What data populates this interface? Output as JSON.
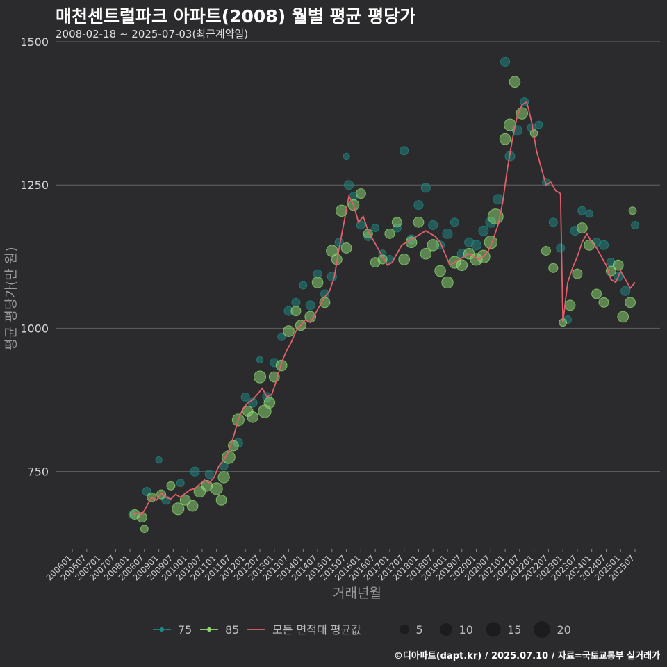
{
  "title": "매천센트럴파크 아파트(2008) 월별 평균 평당가",
  "subtitle": "2008-02-18 ~ 2025-07-03(최근계약일)",
  "footer": "©디아파트(dapt.kr) / 2025.07.10 / 자료=국토교통부 실거래가",
  "colors": {
    "background": "#2b2b2d",
    "grid": "#5a5a5a",
    "s75": "#1f8a84",
    "s85": "#8fdc74",
    "avg": "#e0606b"
  },
  "chart_data": {
    "type": "scatter",
    "title": "매천센트럴파크 아파트(2008) 월별 평균 평당가",
    "xlabel": "거래년월",
    "ylabel": "평균 평당가(만 원)",
    "ylim": [
      615,
      1500
    ],
    "y_ticks": [
      750,
      1000,
      1250,
      1500
    ],
    "x_range": [
      "2006-01",
      "2025-07"
    ],
    "x_tick_labels": [
      "200601",
      "200607",
      "200701",
      "200707",
      "200801",
      "200807",
      "200901",
      "200907",
      "201001",
      "201007",
      "201101",
      "201107",
      "201201",
      "201207",
      "201301",
      "201307",
      "201401",
      "201407",
      "201501",
      "201507",
      "201601",
      "201607",
      "201701",
      "201707",
      "201801",
      "201807",
      "201901",
      "201907",
      "202001",
      "202007",
      "202101",
      "202107",
      "202201",
      "202207",
      "202301",
      "202307",
      "202401",
      "202407",
      "202501",
      "202507"
    ],
    "legend": {
      "series": [
        {
          "key": "75",
          "label": "75"
        },
        {
          "key": "85",
          "label": "85"
        },
        {
          "key": "avg",
          "label": "모든 면적대 평균값"
        }
      ],
      "sizes": [
        5,
        10,
        15,
        20
      ],
      "size_labels": [
        "5",
        "10",
        "15",
        "20"
      ]
    },
    "series": [
      {
        "name": "75",
        "points": [
          [
            "2008-02",
            675,
            3
          ],
          [
            "2008-08",
            715,
            4
          ],
          [
            "2009-01",
            770,
            2
          ],
          [
            "2009-04",
            700,
            4
          ],
          [
            "2009-10",
            730,
            3
          ],
          [
            "2010-04",
            750,
            5
          ],
          [
            "2010-10",
            745,
            4
          ],
          [
            "2011-04",
            760,
            4
          ],
          [
            "2011-10",
            800,
            5
          ],
          [
            "2012-01",
            880,
            4
          ],
          [
            "2012-04",
            870,
            5
          ],
          [
            "2012-07",
            945,
            2
          ],
          [
            "2012-10",
            880,
            5
          ],
          [
            "2013-01",
            940,
            4
          ],
          [
            "2013-04",
            985,
            3
          ],
          [
            "2013-07",
            1030,
            5
          ],
          [
            "2013-10",
            1045,
            4
          ],
          [
            "2014-01",
            1075,
            3
          ],
          [
            "2014-04",
            1040,
            5
          ],
          [
            "2014-07",
            1095,
            4
          ],
          [
            "2014-10",
            1060,
            4
          ],
          [
            "2015-01",
            1090,
            5
          ],
          [
            "2015-04",
            1150,
            4
          ],
          [
            "2015-07",
            1300,
            2
          ],
          [
            "2015-08",
            1250,
            5
          ],
          [
            "2015-10",
            1230,
            4
          ],
          [
            "2016-01",
            1180,
            4
          ],
          [
            "2016-04",
            1160,
            4
          ],
          [
            "2016-07",
            1175,
            3
          ],
          [
            "2016-10",
            1130,
            3
          ],
          [
            "2017-01",
            1120,
            4
          ],
          [
            "2017-04",
            1175,
            4
          ],
          [
            "2017-07",
            1310,
            4
          ],
          [
            "2017-10",
            1155,
            5
          ],
          [
            "2018-01",
            1215,
            5
          ],
          [
            "2018-04",
            1245,
            5
          ],
          [
            "2018-07",
            1180,
            5
          ],
          [
            "2018-10",
            1145,
            4
          ],
          [
            "2019-01",
            1165,
            6
          ],
          [
            "2019-04",
            1185,
            4
          ],
          [
            "2019-07",
            1130,
            5
          ],
          [
            "2019-10",
            1150,
            5
          ],
          [
            "2020-01",
            1145,
            6
          ],
          [
            "2020-04",
            1170,
            6
          ],
          [
            "2020-07",
            1185,
            7
          ],
          [
            "2020-10",
            1225,
            6
          ],
          [
            "2021-01",
            1465,
            5
          ],
          [
            "2021-03",
            1300,
            6
          ],
          [
            "2021-06",
            1345,
            6
          ],
          [
            "2021-09",
            1395,
            4
          ],
          [
            "2021-12",
            1350,
            4
          ],
          [
            "2022-03",
            1355,
            3
          ],
          [
            "2022-06",
            1255,
            3
          ],
          [
            "2022-09",
            1185,
            4
          ],
          [
            "2022-12",
            1140,
            4
          ],
          [
            "2023-03",
            1015,
            3
          ],
          [
            "2023-06",
            1170,
            5
          ],
          [
            "2023-09",
            1205,
            4
          ],
          [
            "2023-12",
            1200,
            3
          ],
          [
            "2024-03",
            1150,
            4
          ],
          [
            "2024-06",
            1145,
            5
          ],
          [
            "2024-09",
            1115,
            4
          ],
          [
            "2024-12",
            1090,
            5
          ],
          [
            "2025-03",
            1065,
            5
          ],
          [
            "2025-07",
            1180,
            3
          ]
        ]
      },
      {
        "name": "85",
        "points": [
          [
            "2008-03",
            675,
            6
          ],
          [
            "2008-06",
            670,
            6
          ],
          [
            "2008-07",
            650,
            3
          ],
          [
            "2008-10",
            705,
            5
          ],
          [
            "2009-02",
            710,
            5
          ],
          [
            "2009-06",
            725,
            4
          ],
          [
            "2009-09",
            685,
            10
          ],
          [
            "2009-12",
            700,
            7
          ],
          [
            "2010-03",
            690,
            8
          ],
          [
            "2010-06",
            715,
            9
          ],
          [
            "2010-09",
            725,
            8
          ],
          [
            "2011-01",
            720,
            10
          ],
          [
            "2011-03",
            700,
            7
          ],
          [
            "2011-04",
            740,
            9
          ],
          [
            "2011-06",
            775,
            12
          ],
          [
            "2011-08",
            795,
            7
          ],
          [
            "2011-10",
            840,
            10
          ],
          [
            "2012-02",
            855,
            7
          ],
          [
            "2012-04",
            845,
            8
          ],
          [
            "2012-07",
            915,
            10
          ],
          [
            "2012-09",
            855,
            12
          ],
          [
            "2012-11",
            870,
            8
          ],
          [
            "2013-01",
            915,
            7
          ],
          [
            "2013-04",
            935,
            8
          ],
          [
            "2013-07",
            995,
            8
          ],
          [
            "2013-10",
            1030,
            6
          ],
          [
            "2013-12",
            1005,
            7
          ],
          [
            "2014-04",
            1020,
            8
          ],
          [
            "2014-07",
            1080,
            8
          ],
          [
            "2014-10",
            1045,
            7
          ],
          [
            "2015-01",
            1135,
            9
          ],
          [
            "2015-03",
            1120,
            7
          ],
          [
            "2015-05",
            1205,
            9
          ],
          [
            "2015-07",
            1140,
            7
          ],
          [
            "2015-10",
            1215,
            8
          ],
          [
            "2016-01",
            1235,
            6
          ],
          [
            "2016-04",
            1165,
            5
          ],
          [
            "2016-07",
            1115,
            6
          ],
          [
            "2016-10",
            1120,
            5
          ],
          [
            "2017-01",
            1165,
            6
          ],
          [
            "2017-04",
            1185,
            6
          ],
          [
            "2017-07",
            1120,
            8
          ],
          [
            "2017-10",
            1150,
            8
          ],
          [
            "2018-01",
            1185,
            7
          ],
          [
            "2018-04",
            1130,
            8
          ],
          [
            "2018-07",
            1145,
            9
          ],
          [
            "2018-10",
            1100,
            8
          ],
          [
            "2019-01",
            1080,
            9
          ],
          [
            "2019-04",
            1115,
            10
          ],
          [
            "2019-07",
            1110,
            8
          ],
          [
            "2019-10",
            1130,
            8
          ],
          [
            "2020-01",
            1120,
            10
          ],
          [
            "2020-04",
            1125,
            12
          ],
          [
            "2020-07",
            1150,
            12
          ],
          [
            "2020-09",
            1195,
            18
          ],
          [
            "2021-01",
            1330,
            8
          ],
          [
            "2021-03",
            1355,
            10
          ],
          [
            "2021-05",
            1430,
            8
          ],
          [
            "2021-08",
            1375,
            9
          ],
          [
            "2022-01",
            1340,
            3
          ],
          [
            "2022-06",
            1135,
            5
          ],
          [
            "2022-09",
            1105,
            5
          ],
          [
            "2023-01",
            1010,
            3
          ],
          [
            "2023-04",
            1040,
            7
          ],
          [
            "2023-07",
            1095,
            6
          ],
          [
            "2023-09",
            1175,
            7
          ],
          [
            "2023-12",
            1145,
            7
          ],
          [
            "2024-03",
            1060,
            6
          ],
          [
            "2024-06",
            1045,
            6
          ],
          [
            "2024-09",
            1100,
            6
          ],
          [
            "2024-12",
            1110,
            7
          ],
          [
            "2025-02",
            1020,
            8
          ],
          [
            "2025-05",
            1045,
            7
          ],
          [
            "2025-06",
            1205,
            3
          ]
        ]
      },
      {
        "name": "모든 면적대 평균값",
        "line": [
          [
            "2008-02",
            675
          ],
          [
            "2008-04",
            677
          ],
          [
            "2008-06",
            675
          ],
          [
            "2008-08",
            690
          ],
          [
            "2008-10",
            705
          ],
          [
            "2008-12",
            700
          ],
          [
            "2009-02",
            712
          ],
          [
            "2009-04",
            705
          ],
          [
            "2009-06",
            702
          ],
          [
            "2009-08",
            710
          ],
          [
            "2009-10",
            705
          ],
          [
            "2009-12",
            712
          ],
          [
            "2010-02",
            718
          ],
          [
            "2010-04",
            720
          ],
          [
            "2010-06",
            728
          ],
          [
            "2010-08",
            735
          ],
          [
            "2010-10",
            730
          ],
          [
            "2010-12",
            740
          ],
          [
            "2011-02",
            760
          ],
          [
            "2011-04",
            770
          ],
          [
            "2011-06",
            785
          ],
          [
            "2011-08",
            810
          ],
          [
            "2011-10",
            840
          ],
          [
            "2011-12",
            860
          ],
          [
            "2012-02",
            870
          ],
          [
            "2012-04",
            875
          ],
          [
            "2012-06",
            885
          ],
          [
            "2012-08",
            895
          ],
          [
            "2012-10",
            880
          ],
          [
            "2012-12",
            885
          ],
          [
            "2013-02",
            910
          ],
          [
            "2013-04",
            940
          ],
          [
            "2013-06",
            960
          ],
          [
            "2013-08",
            975
          ],
          [
            "2013-10",
            995
          ],
          [
            "2013-12",
            1005
          ],
          [
            "2014-02",
            1015
          ],
          [
            "2014-04",
            1010
          ],
          [
            "2014-06",
            1025
          ],
          [
            "2014-08",
            1040
          ],
          [
            "2014-10",
            1055
          ],
          [
            "2014-12",
            1065
          ],
          [
            "2015-02",
            1090
          ],
          [
            "2015-04",
            1140
          ],
          [
            "2015-06",
            1185
          ],
          [
            "2015-08",
            1230
          ],
          [
            "2015-10",
            1215
          ],
          [
            "2015-12",
            1185
          ],
          [
            "2016-02",
            1195
          ],
          [
            "2016-04",
            1170
          ],
          [
            "2016-06",
            1155
          ],
          [
            "2016-08",
            1140
          ],
          [
            "2016-10",
            1125
          ],
          [
            "2016-12",
            1110
          ],
          [
            "2017-02",
            1115
          ],
          [
            "2017-04",
            1130
          ],
          [
            "2017-06",
            1145
          ],
          [
            "2017-08",
            1150
          ],
          [
            "2017-10",
            1155
          ],
          [
            "2017-12",
            1160
          ],
          [
            "2018-02",
            1165
          ],
          [
            "2018-04",
            1170
          ],
          [
            "2018-06",
            1165
          ],
          [
            "2018-08",
            1160
          ],
          [
            "2018-10",
            1150
          ],
          [
            "2018-12",
            1130
          ],
          [
            "2019-02",
            1110
          ],
          [
            "2019-04",
            1115
          ],
          [
            "2019-06",
            1120
          ],
          [
            "2019-08",
            1125
          ],
          [
            "2019-10",
            1130
          ],
          [
            "2019-12",
            1125
          ],
          [
            "2020-02",
            1120
          ],
          [
            "2020-04",
            1125
          ],
          [
            "2020-06",
            1135
          ],
          [
            "2020-08",
            1155
          ],
          [
            "2020-10",
            1180
          ],
          [
            "2020-12",
            1220
          ],
          [
            "2021-02",
            1280
          ],
          [
            "2021-04",
            1330
          ],
          [
            "2021-06",
            1370
          ],
          [
            "2021-08",
            1390
          ],
          [
            "2021-10",
            1395
          ],
          [
            "2021-12",
            1360
          ],
          [
            "2022-02",
            1310
          ],
          [
            "2022-04",
            1280
          ],
          [
            "2022-06",
            1250
          ],
          [
            "2022-08",
            1255
          ],
          [
            "2022-10",
            1240
          ],
          [
            "2022-12",
            1235
          ],
          [
            "2023-01",
            1010
          ],
          [
            "2023-03",
            1080
          ],
          [
            "2023-05",
            1105
          ],
          [
            "2023-07",
            1125
          ],
          [
            "2023-09",
            1150
          ],
          [
            "2023-11",
            1165
          ],
          [
            "2024-01",
            1150
          ],
          [
            "2024-03",
            1140
          ],
          [
            "2024-05",
            1125
          ],
          [
            "2024-07",
            1110
          ],
          [
            "2024-09",
            1085
          ],
          [
            "2024-11",
            1080
          ],
          [
            "2025-01",
            1100
          ],
          [
            "2025-03",
            1085
          ],
          [
            "2025-05",
            1070
          ],
          [
            "2025-07",
            1080
          ]
        ]
      }
    ]
  }
}
